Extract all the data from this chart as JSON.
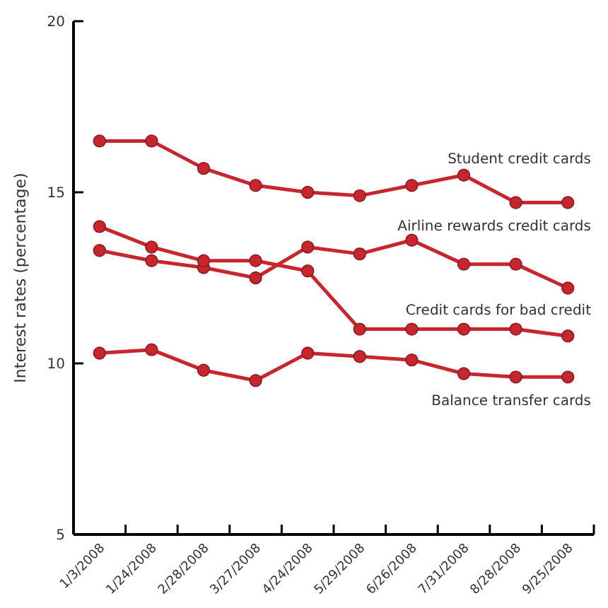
{
  "chart_data": {
    "type": "line",
    "ylabel": "Interest rates (percentage)",
    "categories": [
      "1/3/2008",
      "1/24/2008",
      "2/28/2008",
      "3/27/2008",
      "4/24/2008",
      "5/29/2008",
      "6/26/2008",
      "7/31/2008",
      "8/28/2008",
      "9/25/2008"
    ],
    "series": [
      {
        "name": "Student credit cards",
        "color": "#c8262e",
        "values": [
          16.5,
          16.5,
          15.7,
          15.2,
          15.0,
          14.9,
          15.2,
          15.5,
          14.7,
          14.7
        ]
      },
      {
        "name": "Airline rewards credit cards",
        "color": "#c8262e",
        "values": [
          13.3,
          13.0,
          12.8,
          12.5,
          13.4,
          13.2,
          13.6,
          12.9,
          12.9,
          12.2
        ]
      },
      {
        "name": "Credit cards for bad credit",
        "color": "#c8262e",
        "values": [
          14.0,
          13.4,
          13.0,
          13.0,
          12.7,
          11.0,
          11.0,
          11.0,
          11.0,
          10.8
        ]
      },
      {
        "name": "Balance transfer cards",
        "color": "#c8262e",
        "values": [
          10.3,
          10.4,
          9.8,
          9.5,
          10.3,
          10.2,
          10.1,
          9.7,
          9.6,
          9.6
        ]
      }
    ],
    "ylim": [
      5,
      20
    ],
    "yticks": [
      5,
      10,
      15,
      20
    ],
    "grid": false,
    "marker": "circle",
    "line_style": "solid"
  }
}
